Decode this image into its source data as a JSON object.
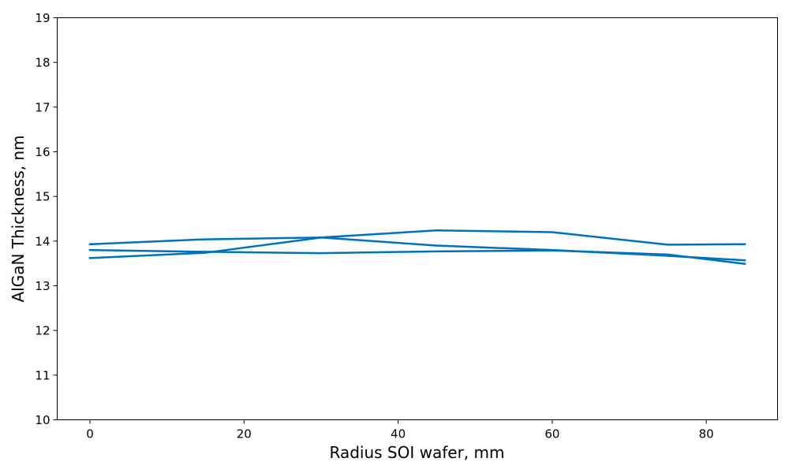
{
  "chart_data": {
    "type": "line",
    "title": "",
    "xlabel": "Radius SOI wafer, mm",
    "ylabel": "AlGaN Thickness, nm",
    "xlim": [
      -4.25,
      89.25
    ],
    "ylim": [
      10,
      19
    ],
    "x_ticks": [
      0,
      20,
      40,
      60,
      80
    ],
    "y_ticks": [
      10,
      11,
      12,
      13,
      14,
      15,
      16,
      17,
      18,
      19
    ],
    "grid": false,
    "legend": "none",
    "line_color": "#0072bd",
    "series": [
      {
        "x": [
          0,
          15,
          30,
          45,
          60,
          75,
          85
        ],
        "y": [
          13.93,
          14.04,
          14.08,
          13.9,
          13.8,
          13.67,
          13.57
        ]
      },
      {
        "x": [
          0,
          15,
          30,
          45,
          60,
          75,
          85
        ],
        "y": [
          13.62,
          13.74,
          14.08,
          14.24,
          14.2,
          13.92,
          13.93
        ]
      },
      {
        "x": [
          0,
          15,
          30,
          45,
          60,
          75,
          85
        ],
        "y": [
          13.8,
          13.76,
          13.73,
          13.77,
          13.79,
          13.7,
          13.49
        ]
      }
    ]
  }
}
